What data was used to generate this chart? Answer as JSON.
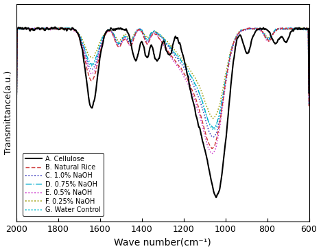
{
  "title": "",
  "xlabel": "Wave number(cm⁻¹)",
  "ylabel": "Transmittance(a.u.)",
  "xlim": [
    2000,
    600
  ],
  "legend_entries": [
    "A. Cellulose",
    "B. Natural Rice",
    "C. 1.0% NaOH",
    "D. 0.75% NaOH",
    "E. 0.5% NaOH",
    "F. 0.25% NaOH",
    "G. Water Control"
  ],
  "xticks": [
    2000,
    1800,
    1600,
    1400,
    1200,
    1000,
    800,
    600
  ],
  "background_color": "#ffffff"
}
